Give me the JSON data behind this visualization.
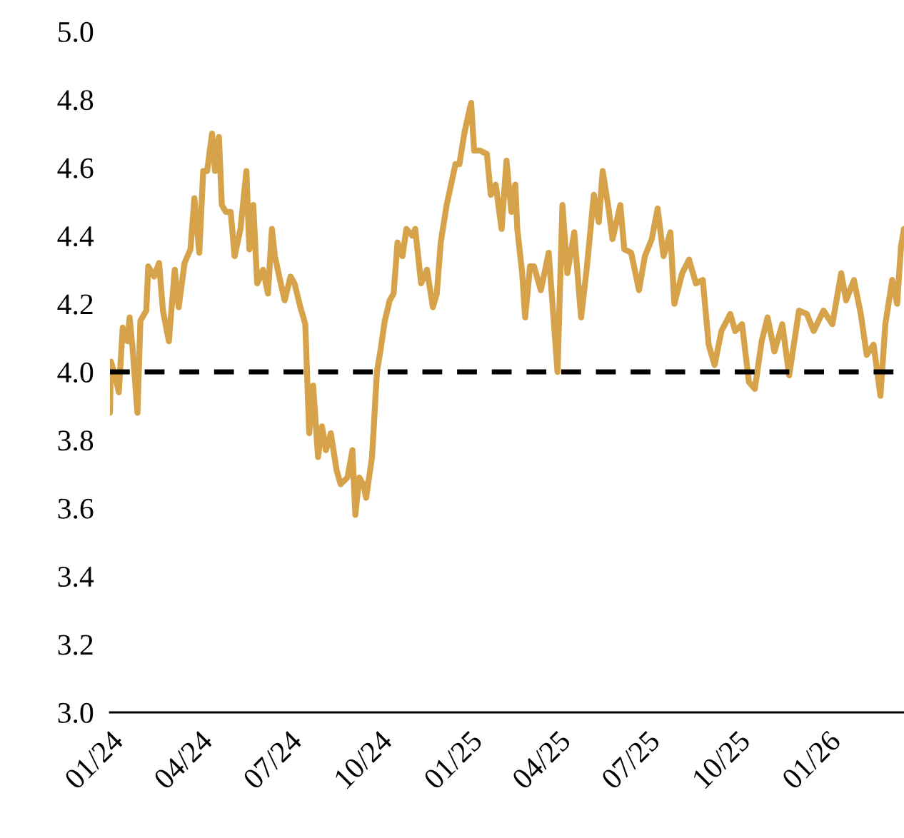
{
  "chart_data": {
    "type": "line",
    "x": [
      "2024-01-01",
      "2024-01-02",
      "2024-01-07",
      "2024-01-10",
      "2024-01-14",
      "2024-01-19",
      "2024-01-21",
      "2024-01-24",
      "2024-01-29",
      "2024-02-01",
      "2024-02-07",
      "2024-02-09",
      "2024-02-15",
      "2024-02-20",
      "2024-02-24",
      "2024-03-01",
      "2024-03-07",
      "2024-03-11",
      "2024-03-17",
      "2024-03-23",
      "2024-03-27",
      "2024-04-01",
      "2024-04-05",
      "2024-04-09",
      "2024-04-14",
      "2024-04-17",
      "2024-04-21",
      "2024-04-24",
      "2024-04-28",
      "2024-05-03",
      "2024-05-07",
      "2024-05-13",
      "2024-05-19",
      "2024-05-22",
      "2024-05-26",
      "2024-05-30",
      "2024-06-05",
      "2024-06-10",
      "2024-06-14",
      "2024-06-17",
      "2024-06-23",
      "2024-06-27",
      "2024-07-03",
      "2024-07-07",
      "2024-07-13",
      "2024-07-18",
      "2024-07-22",
      "2024-07-26",
      "2024-07-31",
      "2024-08-04",
      "2024-08-08",
      "2024-08-13",
      "2024-08-19",
      "2024-08-23",
      "2024-08-30",
      "2024-09-04",
      "2024-09-07",
      "2024-09-11",
      "2024-09-15",
      "2024-09-18",
      "2024-09-24",
      "2024-09-29",
      "2024-10-03",
      "2024-10-07",
      "2024-10-12",
      "2024-10-16",
      "2024-10-20",
      "2024-10-25",
      "2024-10-29",
      "2024-11-04",
      "2024-11-07",
      "2024-11-13",
      "2024-11-19",
      "2024-11-25",
      "2024-11-29",
      "2024-12-03",
      "2024-12-09",
      "2024-12-15",
      "2024-12-18",
      "2024-12-22",
      "2024-12-27",
      "2024-12-30",
      "2025-01-03",
      "2025-01-06",
      "2025-01-12",
      "2025-01-19",
      "2025-01-23",
      "2025-01-28",
      "2025-02-03",
      "2025-02-08",
      "2025-02-13",
      "2025-02-17",
      "2025-02-19",
      "2025-02-24",
      "2025-02-27",
      "2025-03-04",
      "2025-03-08",
      "2025-03-15",
      "2025-03-23",
      "2025-04-01",
      "2025-04-06",
      "2025-04-11",
      "2025-04-18",
      "2025-04-25",
      "2025-05-01",
      "2025-05-08",
      "2025-05-13",
      "2025-05-17",
      "2025-05-23",
      "2025-05-27",
      "2025-06-04",
      "2025-06-08",
      "2025-06-15",
      "2025-06-23",
      "2025-06-29",
      "2025-07-06",
      "2025-07-12",
      "2025-07-18",
      "2025-07-25",
      "2025-07-29",
      "2025-08-06",
      "2025-08-13",
      "2025-08-20",
      "2025-08-27",
      "2025-09-02",
      "2025-09-08",
      "2025-09-15",
      "2025-09-24",
      "2025-09-29",
      "2025-10-06",
      "2025-10-13",
      "2025-10-19",
      "2025-10-26",
      "2025-11-01",
      "2025-11-08",
      "2025-11-16",
      "2025-11-23",
      "2025-12-03",
      "2025-12-11",
      "2025-12-18",
      "2025-12-28",
      "2026-01-06",
      "2026-01-15",
      "2026-01-20",
      "2026-01-28",
      "2026-02-04",
      "2026-02-10",
      "2026-02-17",
      "2026-02-24",
      "2026-03-01",
      "2026-03-08",
      "2026-03-13",
      "2026-03-17",
      "2026-03-20"
    ],
    "series": [
      {
        "color": "#d6a34a",
        "values": [
          3.88,
          4.03,
          3.98,
          3.94,
          4.13,
          4.09,
          4.16,
          4.07,
          3.88,
          4.15,
          4.18,
          4.31,
          4.28,
          4.32,
          4.18,
          4.09,
          4.3,
          4.19,
          4.32,
          4.36,
          4.51,
          4.35,
          4.59,
          4.59,
          4.7,
          4.59,
          4.69,
          4.49,
          4.47,
          4.47,
          4.34,
          4.42,
          4.59,
          4.36,
          4.49,
          4.26,
          4.3,
          4.23,
          4.42,
          4.34,
          4.26,
          4.21,
          4.28,
          4.26,
          4.19,
          4.14,
          3.82,
          3.96,
          3.75,
          3.84,
          3.77,
          3.82,
          3.71,
          3.67,
          3.69,
          3.77,
          3.58,
          3.69,
          3.67,
          3.63,
          3.75,
          4.0,
          4.07,
          4.15,
          4.21,
          4.23,
          4.38,
          4.34,
          4.42,
          4.4,
          4.42,
          4.26,
          4.3,
          4.19,
          4.23,
          4.38,
          4.49,
          4.57,
          4.61,
          4.61,
          4.7,
          4.74,
          4.79,
          4.65,
          4.65,
          4.64,
          4.52,
          4.55,
          4.42,
          4.62,
          4.47,
          4.55,
          4.42,
          4.29,
          4.16,
          4.31,
          4.31,
          4.24,
          4.35,
          4.0,
          4.49,
          4.29,
          4.41,
          4.16,
          4.31,
          4.52,
          4.44,
          4.59,
          4.48,
          4.39,
          4.49,
          4.36,
          4.35,
          4.24,
          4.34,
          4.39,
          4.48,
          4.34,
          4.41,
          4.2,
          4.29,
          4.33,
          4.26,
          4.27,
          4.08,
          4.02,
          4.12,
          4.17,
          4.12,
          4.14,
          3.97,
          3.95,
          4.09,
          4.16,
          4.06,
          4.14,
          3.99,
          4.18,
          4.17,
          4.12,
          4.18,
          4.14,
          4.29,
          4.21,
          4.27,
          4.17,
          4.05,
          4.08,
          3.93,
          4.14,
          4.27,
          4.2,
          4.37,
          4.42
        ]
      }
    ],
    "xlim": [
      "2024-01-01",
      "2026-03-20"
    ],
    "xticks": [
      {
        "value": "2024-01-01",
        "label": "01/24"
      },
      {
        "value": "2024-04-01",
        "label": "04/24"
      },
      {
        "value": "2024-07-01",
        "label": "07/24"
      },
      {
        "value": "2024-10-01",
        "label": "10/24"
      },
      {
        "value": "2025-01-01",
        "label": "01/25"
      },
      {
        "value": "2025-04-01",
        "label": "04/25"
      },
      {
        "value": "2025-07-01",
        "label": "07/25"
      },
      {
        "value": "2025-10-01",
        "label": "10/25"
      },
      {
        "value": "2026-01-01",
        "label": "01/26"
      }
    ],
    "ylim": [
      3.0,
      5.0
    ],
    "yticks": [
      {
        "value": 3.0,
        "label": "3.0"
      },
      {
        "value": 3.2,
        "label": "3.2"
      },
      {
        "value": 3.4,
        "label": "3.4"
      },
      {
        "value": 3.6,
        "label": "3.6"
      },
      {
        "value": 3.8,
        "label": "3.8"
      },
      {
        "value": 4.0,
        "label": "4.0"
      },
      {
        "value": 4.2,
        "label": "4.2"
      },
      {
        "value": 4.4,
        "label": "4.4"
      },
      {
        "value": 4.6,
        "label": "4.6"
      },
      {
        "value": 4.8,
        "label": "4.8"
      },
      {
        "value": 5.0,
        "label": "5.0"
      }
    ],
    "ref_lines": [
      {
        "axis": "y",
        "value": 4.0,
        "color": "#000000",
        "line_style": "dashed"
      }
    ],
    "grid": false
  }
}
